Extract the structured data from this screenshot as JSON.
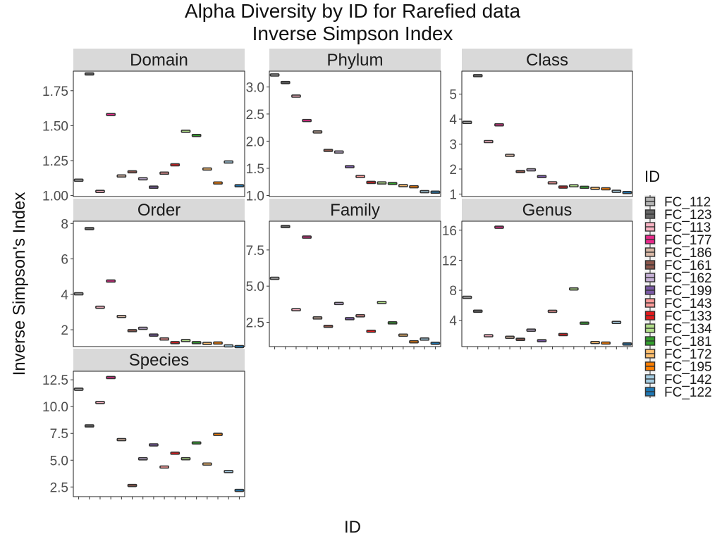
{
  "title": "Alpha Diversity by ID for Rarefied data",
  "subtitle": "Inverse Simpson Index",
  "xlabel": "ID",
  "ylabel": "Inverse Simpson's Index",
  "legend": {
    "title": "ID",
    "position": "right",
    "items": [
      {
        "label": "FC_112",
        "color": "#b3b3b3"
      },
      {
        "label": "FC_123",
        "color": "#666666"
      },
      {
        "label": "FC_113",
        "color": "#fbb4c4"
      },
      {
        "label": "FC_177",
        "color": "#e7298a"
      },
      {
        "label": "FC_186",
        "color": "#d9b8a6"
      },
      {
        "label": "FC_161",
        "color": "#8c564b"
      },
      {
        "label": "FC_162",
        "color": "#c5b0d5"
      },
      {
        "label": "FC_199",
        "color": "#7b5aa6"
      },
      {
        "label": "FC_143",
        "color": "#fb9a99"
      },
      {
        "label": "FC_133",
        "color": "#e31a1c"
      },
      {
        "label": "FC_134",
        "color": "#b2df8a"
      },
      {
        "label": "FC_181",
        "color": "#33a02c"
      },
      {
        "label": "FC_172",
        "color": "#fdbf6f"
      },
      {
        "label": "FC_195",
        "color": "#ff7f00"
      },
      {
        "label": "FC_142",
        "color": "#a6cee3"
      },
      {
        "label": "FC_122",
        "color": "#1f78b4"
      }
    ]
  },
  "chart_data": {
    "type": "box",
    "facet_layout": "3 columns, free y scales",
    "categories": [
      "FC_112",
      "FC_123",
      "FC_113",
      "FC_177",
      "FC_186",
      "FC_161",
      "FC_162",
      "FC_199",
      "FC_143",
      "FC_133",
      "FC_134",
      "FC_181",
      "FC_172",
      "FC_195",
      "FC_142",
      "FC_122"
    ],
    "grid": false,
    "x_tick_labels_visible": false,
    "panels": [
      {
        "strip": "Domain",
        "ylim": [
          0.993,
          1.89
        ],
        "yticks": [
          1.0,
          1.25,
          1.5,
          1.75
        ],
        "tick_labels": [
          "1.00",
          "1.25",
          "1.50",
          "1.75"
        ],
        "values": [
          1.11,
          1.87,
          1.03,
          1.58,
          1.14,
          1.17,
          1.12,
          1.06,
          1.16,
          1.22,
          1.46,
          1.43,
          1.19,
          1.09,
          1.24,
          1.07
        ]
      },
      {
        "strip": "Phylum",
        "ylim": [
          0.98,
          3.29
        ],
        "yticks": [
          1.0,
          1.5,
          2.0,
          2.5,
          3.0
        ],
        "tick_labels": [
          "1.0",
          "1.5",
          "2.0",
          "2.5",
          "3.0"
        ],
        "values": [
          3.22,
          3.08,
          2.83,
          2.38,
          2.17,
          1.83,
          1.8,
          1.53,
          1.35,
          1.24,
          1.23,
          1.22,
          1.18,
          1.16,
          1.07,
          1.06
        ]
      },
      {
        "strip": "Class",
        "ylim": [
          0.9,
          5.92
        ],
        "yticks": [
          1,
          2,
          3,
          4,
          5
        ],
        "tick_labels": [
          "1",
          "2",
          "3",
          "4",
          "5"
        ],
        "values": [
          3.87,
          5.74,
          3.1,
          3.77,
          2.55,
          1.9,
          1.97,
          1.7,
          1.45,
          1.28,
          1.33,
          1.27,
          1.23,
          1.21,
          1.11,
          1.06
        ]
      },
      {
        "strip": "Order",
        "ylim": [
          1.05,
          8.13
        ],
        "yticks": [
          2,
          4,
          6,
          8
        ],
        "tick_labels": [
          "2",
          "4",
          "6",
          "8"
        ],
        "values": [
          4.03,
          7.71,
          3.27,
          4.75,
          2.75,
          1.95,
          2.08,
          1.7,
          1.48,
          1.27,
          1.39,
          1.27,
          1.23,
          1.25,
          1.09,
          1.05
        ]
      },
      {
        "strip": "Family",
        "ylim": [
          0.82,
          9.49
        ],
        "yticks": [
          2.5,
          5.0,
          7.5
        ],
        "tick_labels": [
          "2.5",
          "5.0",
          "7.5"
        ],
        "values": [
          5.54,
          9.12,
          3.37,
          8.39,
          2.8,
          2.22,
          3.8,
          2.75,
          2.95,
          1.88,
          3.87,
          2.46,
          1.61,
          1.15,
          1.34,
          1.05
        ]
      },
      {
        "strip": "Genus",
        "ylim": [
          0.5,
          17.2
        ],
        "yticks": [
          4,
          8,
          12,
          16
        ],
        "tick_labels": [
          "4",
          "8",
          "12",
          "16"
        ],
        "values": [
          7.06,
          5.21,
          1.94,
          16.4,
          1.74,
          1.47,
          2.69,
          1.28,
          5.2,
          2.1,
          8.18,
          3.62,
          1.04,
          0.97,
          3.72,
          0.85
        ]
      },
      {
        "strip": "Species",
        "ylim": [
          1.6,
          13.3
        ],
        "yticks": [
          2.5,
          5.0,
          7.5,
          10.0,
          12.5
        ],
        "tick_labels": [
          "2.5",
          "5.0",
          "7.5",
          "10.0",
          "12.5"
        ],
        "values": [
          11.62,
          8.2,
          10.38,
          12.71,
          6.92,
          2.64,
          5.13,
          6.43,
          4.36,
          5.65,
          5.14,
          6.61,
          4.64,
          7.41,
          3.94,
          2.18
        ]
      }
    ]
  }
}
